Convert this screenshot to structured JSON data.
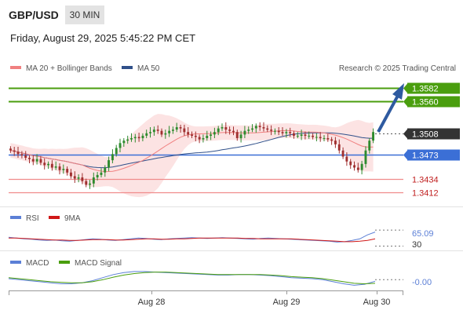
{
  "header": {
    "pair": "GBP/USD",
    "timeframe": "30 MIN",
    "datetime": "Friday, August 29, 2025 5:45:22 PM CET"
  },
  "legend": {
    "ma20": "MA 20 + Bollinger Bands",
    "ma50": "MA 50",
    "credit": "Research © 2025 Trading Central",
    "rsi": "RSI",
    "rsi_ma": "9MA",
    "macd": "MACD",
    "macd_signal": "MACD Signal"
  },
  "colors": {
    "resistance": "#4a9e0e",
    "support_strong": "#3b6fd6",
    "support": "#f08b8b",
    "current": "#333333",
    "bull": "#2e8b2e",
    "bear": "#a03030",
    "ma20": "#f08080",
    "ma50": "#30508a",
    "bands": "#fbdada",
    "arrow": "#2e5aa0"
  },
  "chart_data": [
    {
      "type": "candlestick",
      "x_ticks": [
        "Aug 28",
        "Aug 29",
        "Aug 30"
      ],
      "levels": [
        {
          "label": "1.3582",
          "value": 1.3582,
          "kind": "resistance"
        },
        {
          "label": "1.3560",
          "value": 1.356,
          "kind": "resistance"
        },
        {
          "label": "1.3508",
          "value": 1.3508,
          "kind": "current"
        },
        {
          "label": "1.3473",
          "value": 1.3473,
          "kind": "pivot"
        },
        {
          "label": "1.3434",
          "value": 1.3434,
          "kind": "support"
        },
        {
          "label": "1.3412",
          "value": 1.3412,
          "kind": "support"
        }
      ],
      "ylim": [
        1.3395,
        1.36
      ],
      "closes": [
        1.348,
        1.3478,
        1.3474,
        1.3472,
        1.3468,
        1.3466,
        1.3462,
        1.3466,
        1.346,
        1.3456,
        1.3458,
        1.3452,
        1.3454,
        1.3448,
        1.345,
        1.3444,
        1.3438,
        1.3434,
        1.3436,
        1.343,
        1.3424,
        1.3426,
        1.3436,
        1.344,
        1.3444,
        1.3452,
        1.3464,
        1.3474,
        1.3484,
        1.3492,
        1.3496,
        1.3498,
        1.35,
        1.3502,
        1.35,
        1.3504,
        1.3508,
        1.351,
        1.3514,
        1.3512,
        1.3506,
        1.3508,
        1.3512,
        1.3514,
        1.3518,
        1.3516,
        1.351,
        1.3506,
        1.3504,
        1.3502,
        1.3498,
        1.35,
        1.3504,
        1.3506,
        1.351,
        1.3516,
        1.3518,
        1.3514,
        1.3512,
        1.351,
        1.35,
        1.3506,
        1.3512,
        1.3514,
        1.3516,
        1.352,
        1.3518,
        1.3516,
        1.3514,
        1.3512,
        1.3512,
        1.351,
        1.3508,
        1.351,
        1.3508,
        1.3504,
        1.3504,
        1.3506,
        1.3504,
        1.3504,
        1.3502,
        1.3502,
        1.35,
        1.35,
        1.3498,
        1.3496,
        1.349,
        1.348,
        1.347,
        1.3462,
        1.3456,
        1.3452,
        1.3448,
        1.3458,
        1.348,
        1.3496,
        1.351
      ]
    },
    {
      "type": "line",
      "name": "RSI",
      "ylim": [
        25,
        80
      ],
      "current": "65.09",
      "ref_label": "30",
      "series": [
        {
          "name": "RSI",
          "values": [
            52,
            50,
            48,
            47,
            45,
            44,
            45,
            43,
            42,
            44,
            46,
            48,
            47,
            45,
            44,
            46,
            48,
            50,
            49,
            47,
            46,
            48,
            49,
            50,
            51,
            50,
            49,
            50,
            51,
            50,
            49,
            48,
            47,
            49,
            50,
            49,
            48,
            47,
            46,
            45,
            44,
            43,
            42,
            40,
            41,
            44,
            48,
            58,
            65.09
          ]
        },
        {
          "name": "9MA",
          "values": [
            50,
            50,
            49,
            48,
            47,
            46,
            45,
            45,
            44,
            44,
            45,
            46,
            46,
            46,
            45,
            45,
            46,
            47,
            48,
            48,
            47,
            47,
            48,
            48,
            49,
            50,
            50,
            50,
            50,
            50,
            50,
            49,
            49,
            48,
            48,
            48,
            48,
            48,
            47,
            46,
            45,
            44,
            43,
            42,
            41,
            41,
            42,
            44,
            48
          ]
        }
      ]
    },
    {
      "type": "line",
      "name": "MACD",
      "ylim": [
        -0.0018,
        0.0022
      ],
      "current": "-0.00",
      "series": [
        {
          "name": "MACD",
          "values": [
            0.0002,
            0.0,
            -0.0002,
            -0.0004,
            -0.0006,
            -0.0008,
            -0.0008,
            -0.0006,
            -0.0002,
            0.0004,
            0.001,
            0.0014,
            0.0016,
            0.0016,
            0.0015,
            0.0014,
            0.0013,
            0.0012,
            0.0011,
            0.001,
            0.0009,
            0.0009,
            0.001,
            0.001,
            0.0009,
            0.0008,
            0.0006,
            0.0004,
            0.0003,
            0.0002,
            0.0,
            -0.0004,
            -0.0008,
            -0.0011,
            -0.0009,
            -0.0003
          ]
        },
        {
          "name": "MACD Signal",
          "values": [
            0.0004,
            0.0002,
            0.0,
            -0.0002,
            -0.0004,
            -0.0005,
            -0.0006,
            -0.0006,
            -0.0004,
            0.0,
            0.0005,
            0.0009,
            0.0012,
            0.0014,
            0.0015,
            0.0015,
            0.0014,
            0.0013,
            0.0012,
            0.0011,
            0.001,
            0.001,
            0.001,
            0.001,
            0.001,
            0.0009,
            0.0008,
            0.0006,
            0.0005,
            0.0004,
            0.0002,
            -0.0001,
            -0.0004,
            -0.0007,
            -0.0008,
            -0.0007
          ]
        }
      ]
    }
  ]
}
